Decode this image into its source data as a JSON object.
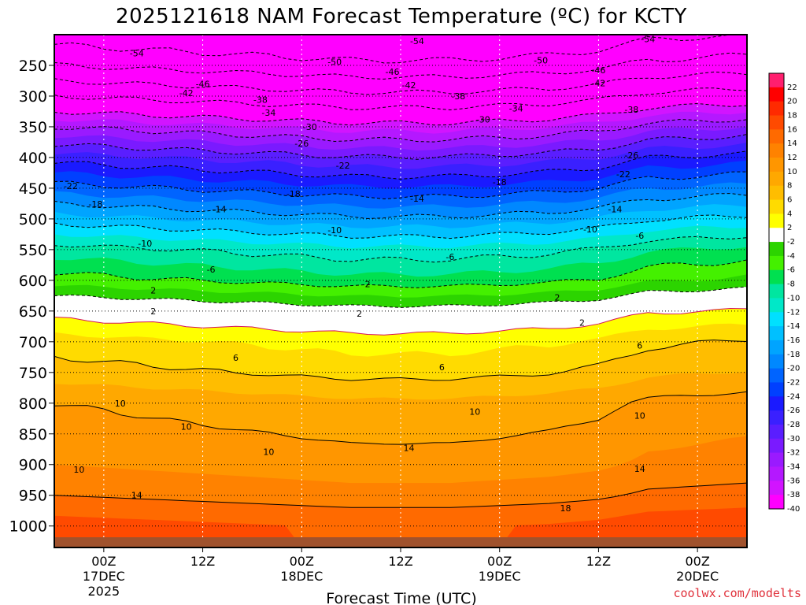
{
  "title": "2025121618 NAM Forecast Temperature (ºC) for KCTY",
  "credit": "coolwx.com/modelts",
  "chart_data": {
    "type": "contour",
    "title": "2025121618 NAM Forecast Temperature (ºC) for KCTY",
    "xlabel": "Forecast Time (UTC)",
    "ylabel": "Pressure (hPa)",
    "x_start_hour_utc": "2025-12-16 18Z",
    "x_range_hours": [
      0,
      84
    ],
    "y_range_hpa": [
      200,
      1035
    ],
    "y_ticks": [
      "250",
      "300",
      "350",
      "400",
      "450",
      "500",
      "550",
      "600",
      "650",
      "700",
      "750",
      "800",
      "850",
      "900",
      "950",
      "1000"
    ],
    "x_ticks": [
      {
        "hour": 6,
        "lines": [
          "00Z",
          "17DEC",
          "2025"
        ]
      },
      {
        "hour": 18,
        "lines": [
          "12Z"
        ]
      },
      {
        "hour": 30,
        "lines": [
          "00Z",
          "18DEC"
        ]
      },
      {
        "hour": 42,
        "lines": [
          "12Z"
        ]
      },
      {
        "hour": 54,
        "lines": [
          "00Z",
          "19DEC"
        ]
      },
      {
        "hour": 66,
        "lines": [
          "12Z"
        ]
      },
      {
        "hour": 78,
        "lines": [
          "00Z",
          "20DEC"
        ]
      }
    ],
    "colorbar": {
      "labels": [
        "22",
        "20",
        "18",
        "16",
        "14",
        "12",
        "10",
        "8",
        "6",
        "4",
        "2",
        "-2",
        "-4",
        "-6",
        "-8",
        "-10",
        "-12",
        "-14",
        "-16",
        "-18",
        "-20",
        "-22",
        "-24",
        "-26",
        "-28",
        "-30",
        "-32",
        "-34",
        "-36",
        "-38",
        "-40"
      ],
      "colors": [
        "#ff1f6e",
        "#ff0000",
        "#ff2a00",
        "#ff4a00",
        "#ff6a00",
        "#ff8200",
        "#ff9600",
        "#ffa800",
        "#ffbd00",
        "#ffdb00",
        "#ffff00",
        "#ffffff",
        "#2cd400",
        "#44f000",
        "#00e050",
        "#00e6a0",
        "#00e8c8",
        "#00e0ff",
        "#00c0ff",
        "#00a4ff",
        "#0088ff",
        "#0064ff",
        "#0040ff",
        "#1a1aff",
        "#3a20ff",
        "#5a1eff",
        "#7a1aff",
        "#9a1aff",
        "#b418ff",
        "#d214ff",
        "#ff00ff"
      ]
    },
    "temperature_profile_at_start": [
      {
        "p": 200,
        "t": -56
      },
      {
        "p": 250,
        "t": -50
      },
      {
        "p": 300,
        "t": -42
      },
      {
        "p": 350,
        "t": -34
      },
      {
        "p": 400,
        "t": -27
      },
      {
        "p": 450,
        "t": -21
      },
      {
        "p": 500,
        "t": -15
      },
      {
        "p": 550,
        "t": -9
      },
      {
        "p": 600,
        "t": -5
      },
      {
        "p": 650,
        "t": 1
      },
      {
        "p": 700,
        "t": 5
      },
      {
        "p": 750,
        "t": 7
      },
      {
        "p": 800,
        "t": 10
      },
      {
        "p": 850,
        "t": 11
      },
      {
        "p": 900,
        "t": 12
      },
      {
        "p": 950,
        "t": 14
      },
      {
        "p": 1000,
        "t": 17
      }
    ],
    "time_anomaly_by_hour": [
      {
        "h": 0,
        "d": 0
      },
      {
        "h": 12,
        "d": -1
      },
      {
        "h": 24,
        "d": -2
      },
      {
        "h": 36,
        "d": -3
      },
      {
        "h": 48,
        "d": -3
      },
      {
        "h": 60,
        "d": -2
      },
      {
        "h": 66,
        "d": -1
      },
      {
        "h": 72,
        "d": 1
      },
      {
        "h": 84,
        "d": 2
      }
    ],
    "contour_labels": [
      {
        "h": 10,
        "p": 230,
        "text": "-54"
      },
      {
        "h": 44,
        "p": 210,
        "text": "-54"
      },
      {
        "h": 72,
        "p": 207,
        "text": "-54"
      },
      {
        "h": 34,
        "p": 244,
        "text": "-50"
      },
      {
        "h": 59,
        "p": 242,
        "text": "-50"
      },
      {
        "h": 41,
        "p": 260,
        "text": "-46"
      },
      {
        "h": 66,
        "p": 258,
        "text": "-46"
      },
      {
        "h": 18,
        "p": 280,
        "text": "-46"
      },
      {
        "h": 43,
        "p": 282,
        "text": "-42"
      },
      {
        "h": 66,
        "p": 279,
        "text": "-42"
      },
      {
        "h": 16,
        "p": 295,
        "text": "-42"
      },
      {
        "h": 25,
        "p": 306,
        "text": "-38"
      },
      {
        "h": 49,
        "p": 300,
        "text": "-38"
      },
      {
        "h": 70,
        "p": 322,
        "text": "-38"
      },
      {
        "h": 26,
        "p": 327,
        "text": "-34"
      },
      {
        "h": 56,
        "p": 320,
        "text": "-34"
      },
      {
        "h": 31,
        "p": 350,
        "text": "-30"
      },
      {
        "h": 52,
        "p": 338,
        "text": "-30"
      },
      {
        "h": 30,
        "p": 377,
        "text": "-26"
      },
      {
        "h": 70,
        "p": 396,
        "text": "-26"
      },
      {
        "h": 35,
        "p": 413,
        "text": "-22"
      },
      {
        "h": 69,
        "p": 427,
        "text": "-22"
      },
      {
        "h": 2,
        "p": 446,
        "text": "-22"
      },
      {
        "h": 29,
        "p": 459,
        "text": "-18"
      },
      {
        "h": 54,
        "p": 440,
        "text": "-18"
      },
      {
        "h": 5,
        "p": 476,
        "text": "-18"
      },
      {
        "h": 20,
        "p": 484,
        "text": "-14"
      },
      {
        "h": 44,
        "p": 467,
        "text": "-14"
      },
      {
        "h": 68,
        "p": 484,
        "text": "-14"
      },
      {
        "h": 34,
        "p": 518,
        "text": "-10"
      },
      {
        "h": 11,
        "p": 540,
        "text": "-10"
      },
      {
        "h": 65,
        "p": 517,
        "text": "-10"
      },
      {
        "h": 19,
        "p": 582,
        "text": "-6"
      },
      {
        "h": 48,
        "p": 562,
        "text": "-6"
      },
      {
        "h": 71,
        "p": 527,
        "text": "-6"
      },
      {
        "h": 12,
        "p": 616,
        "text": "2"
      },
      {
        "h": 38,
        "p": 606,
        "text": "2"
      },
      {
        "h": 61,
        "p": 628,
        "text": "2"
      },
      {
        "h": 12,
        "p": 650,
        "text": "2"
      },
      {
        "h": 37,
        "p": 654,
        "text": "2"
      },
      {
        "h": 64,
        "p": 669,
        "text": "2"
      },
      {
        "h": 22,
        "p": 726,
        "text": "6"
      },
      {
        "h": 47,
        "p": 741,
        "text": "6"
      },
      {
        "h": 71,
        "p": 706,
        "text": "6"
      },
      {
        "h": 8,
        "p": 800,
        "text": "10"
      },
      {
        "h": 16,
        "p": 838,
        "text": "10"
      },
      {
        "h": 26,
        "p": 879,
        "text": "10"
      },
      {
        "h": 51,
        "p": 814,
        "text": "10"
      },
      {
        "h": 71,
        "p": 820,
        "text": "10"
      },
      {
        "h": 3,
        "p": 908,
        "text": "10"
      },
      {
        "h": 10,
        "p": 950,
        "text": "14"
      },
      {
        "h": 43,
        "p": 873,
        "text": "14"
      },
      {
        "h": 71,
        "p": 907,
        "text": "14"
      },
      {
        "h": 62,
        "p": 971,
        "text": "18"
      }
    ]
  }
}
